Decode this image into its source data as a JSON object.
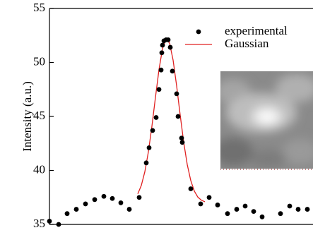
{
  "chart_data": {
    "type": "scatter",
    "ylabel": "Intensity (a.u.)",
    "xlim": [
      0,
      373
    ],
    "ylim": [
      35,
      55
    ],
    "yticks": [
      35,
      40,
      45,
      50,
      55
    ],
    "legend": "upper right",
    "series": [
      {
        "name": "experimental",
        "color": "#000000",
        "marker": "dot",
        "x": [
          0,
          13,
          25,
          38,
          51,
          64,
          77,
          89,
          101,
          113,
          127,
          137,
          141,
          146,
          151,
          155,
          158,
          159,
          160,
          162,
          165,
          168,
          171,
          174,
          180,
          182,
          187,
          188,
          200,
          214,
          226,
          238,
          252,
          265,
          277,
          289,
          301,
          327,
          340,
          352,
          365
        ],
        "values": [
          35.3,
          35.0,
          36.0,
          36.4,
          36.9,
          37.3,
          37.6,
          37.4,
          37.0,
          36.4,
          37.5,
          40.7,
          42.1,
          43.7,
          44.9,
          47.5,
          49.3,
          50.9,
          51.6,
          52.0,
          52.1,
          52.1,
          51.4,
          49.2,
          47.1,
          45.0,
          43.0,
          42.6,
          38.3,
          36.9,
          37.5,
          36.8,
          36.0,
          36.4,
          36.7,
          36.2,
          35.7,
          36.0,
          36.7,
          36.4,
          36.4
        ]
      },
      {
        "name": "Gaussian",
        "color": "#e02020",
        "marker": "line",
        "x": [
          125,
          130,
          135,
          140,
          145,
          150,
          155,
          160,
          165,
          170,
          175,
          180,
          185,
          190,
          195,
          200,
          205,
          210,
          215,
          220
        ],
        "values": [
          37.83,
          38.61,
          39.88,
          41.72,
          44.09,
          46.76,
          49.33,
          51.28,
          52.17,
          51.79,
          50.21,
          47.83,
          45.14,
          42.61,
          40.55,
          39.06,
          38.09,
          37.53,
          37.24,
          37.1
        ]
      }
    ]
  }
}
